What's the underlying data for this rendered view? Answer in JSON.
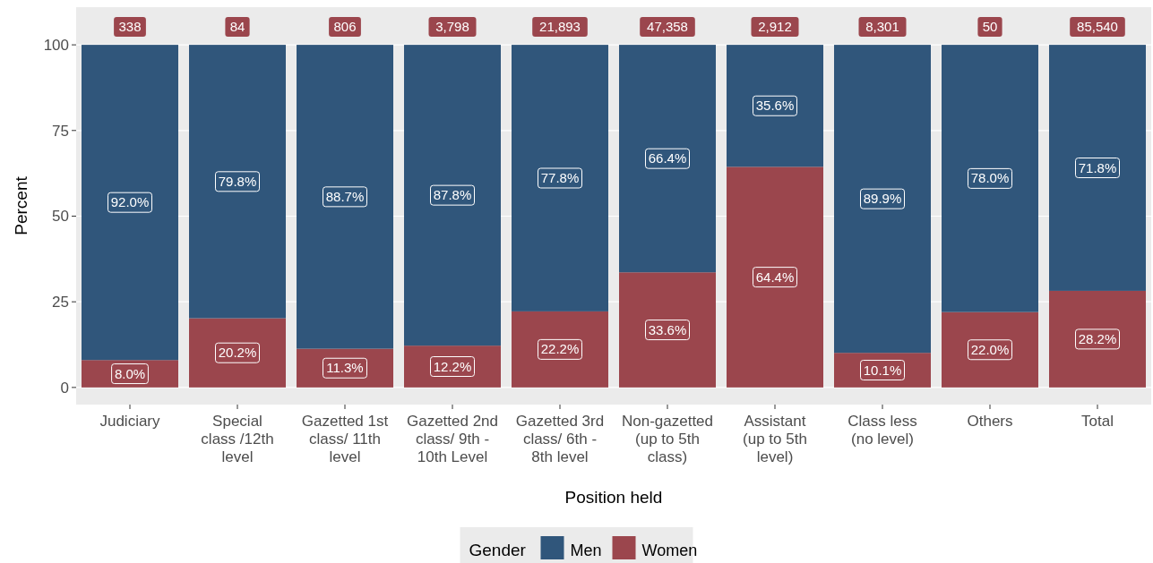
{
  "chart_data": {
    "type": "bar",
    "stacked": true,
    "xlabel": "Position held",
    "ylabel": "Percent",
    "legend_title": "Gender",
    "legend": "bottom",
    "grid": "y",
    "categories": [
      "Judiciary",
      "Special class /12th level",
      "Gazetted 1st class/ 11th level",
      "Gazetted 2nd class/ 9th - 10th Level",
      "Gazetted 3rd class/ 6th - 8th level",
      "Non-gazetted (up to 5th class)",
      "Assistant (up to 5th level)",
      "Class less (no level)",
      "Others",
      "Total"
    ],
    "series": [
      {
        "name": "Women",
        "color": "#9b464d",
        "values": [
          8.0,
          20.2,
          11.3,
          12.2,
          22.2,
          33.6,
          64.4,
          10.1,
          22.0,
          28.2
        ],
        "value_labels": [
          "8.0%",
          "20.2%",
          "11.3%",
          "12.2%",
          "22.2%",
          "33.6%",
          "64.4%",
          "10.1%",
          "22.0%",
          "28.2%"
        ]
      },
      {
        "name": "Men",
        "color": "#30567b",
        "values": [
          92.0,
          79.8,
          88.7,
          87.8,
          77.8,
          66.4,
          35.6,
          89.9,
          78.0,
          71.8
        ],
        "value_labels": [
          "92.0%",
          "79.8%",
          "88.7%",
          "87.8%",
          "77.8%",
          "66.4%",
          "35.6%",
          "89.9%",
          "78.0%",
          "71.8%"
        ]
      }
    ],
    "annotations": [
      {
        "text": "338",
        "x": "Judiciary",
        "y": 100
      },
      {
        "text": "84",
        "x": "Special class /12th level",
        "y": 100
      },
      {
        "text": "806",
        "x": "Gazetted 1st class/ 11th level",
        "y": 100
      },
      {
        "text": "3,798",
        "x": "Gazetted 2nd class/ 9th - 10th Level",
        "y": 100
      },
      {
        "text": "21,893",
        "x": "Gazetted 3rd class/ 6th - 8th level",
        "y": 100
      },
      {
        "text": "47,358",
        "x": "Non-gazetted (up to 5th class)",
        "y": 100
      },
      {
        "text": "2,912",
        "x": "Assistant (up to 5th level)",
        "y": 100
      },
      {
        "text": "8,301",
        "x": "Class less (no level)",
        "y": 100
      },
      {
        "text": "50",
        "x": "Others",
        "y": 100
      },
      {
        "text": "85,540",
        "x": "Total",
        "y": 100
      }
    ],
    "ylim": [
      -5,
      111
    ],
    "yticks": [
      0,
      25,
      50,
      75,
      100
    ]
  }
}
